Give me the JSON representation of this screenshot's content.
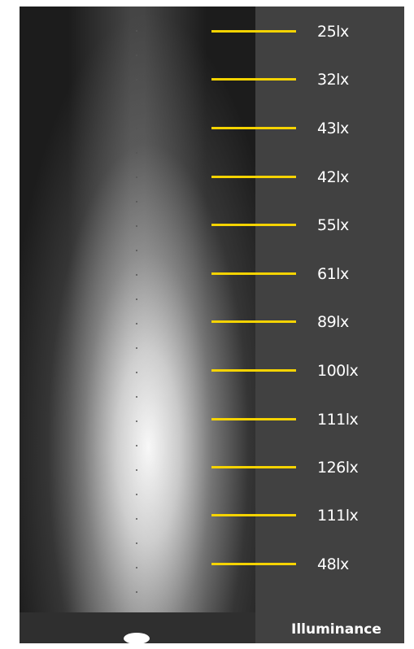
{
  "readings": [
    "25lx",
    "32lx",
    "43lx",
    "42lx",
    "55lx",
    "61lx",
    "89lx",
    "100lx",
    "111lx",
    "126lx",
    "111lx",
    "48lx"
  ],
  "legend": {
    "label": "Illuminance"
  },
  "colors": {
    "marker": "#f5d300",
    "background": "#414141"
  }
}
